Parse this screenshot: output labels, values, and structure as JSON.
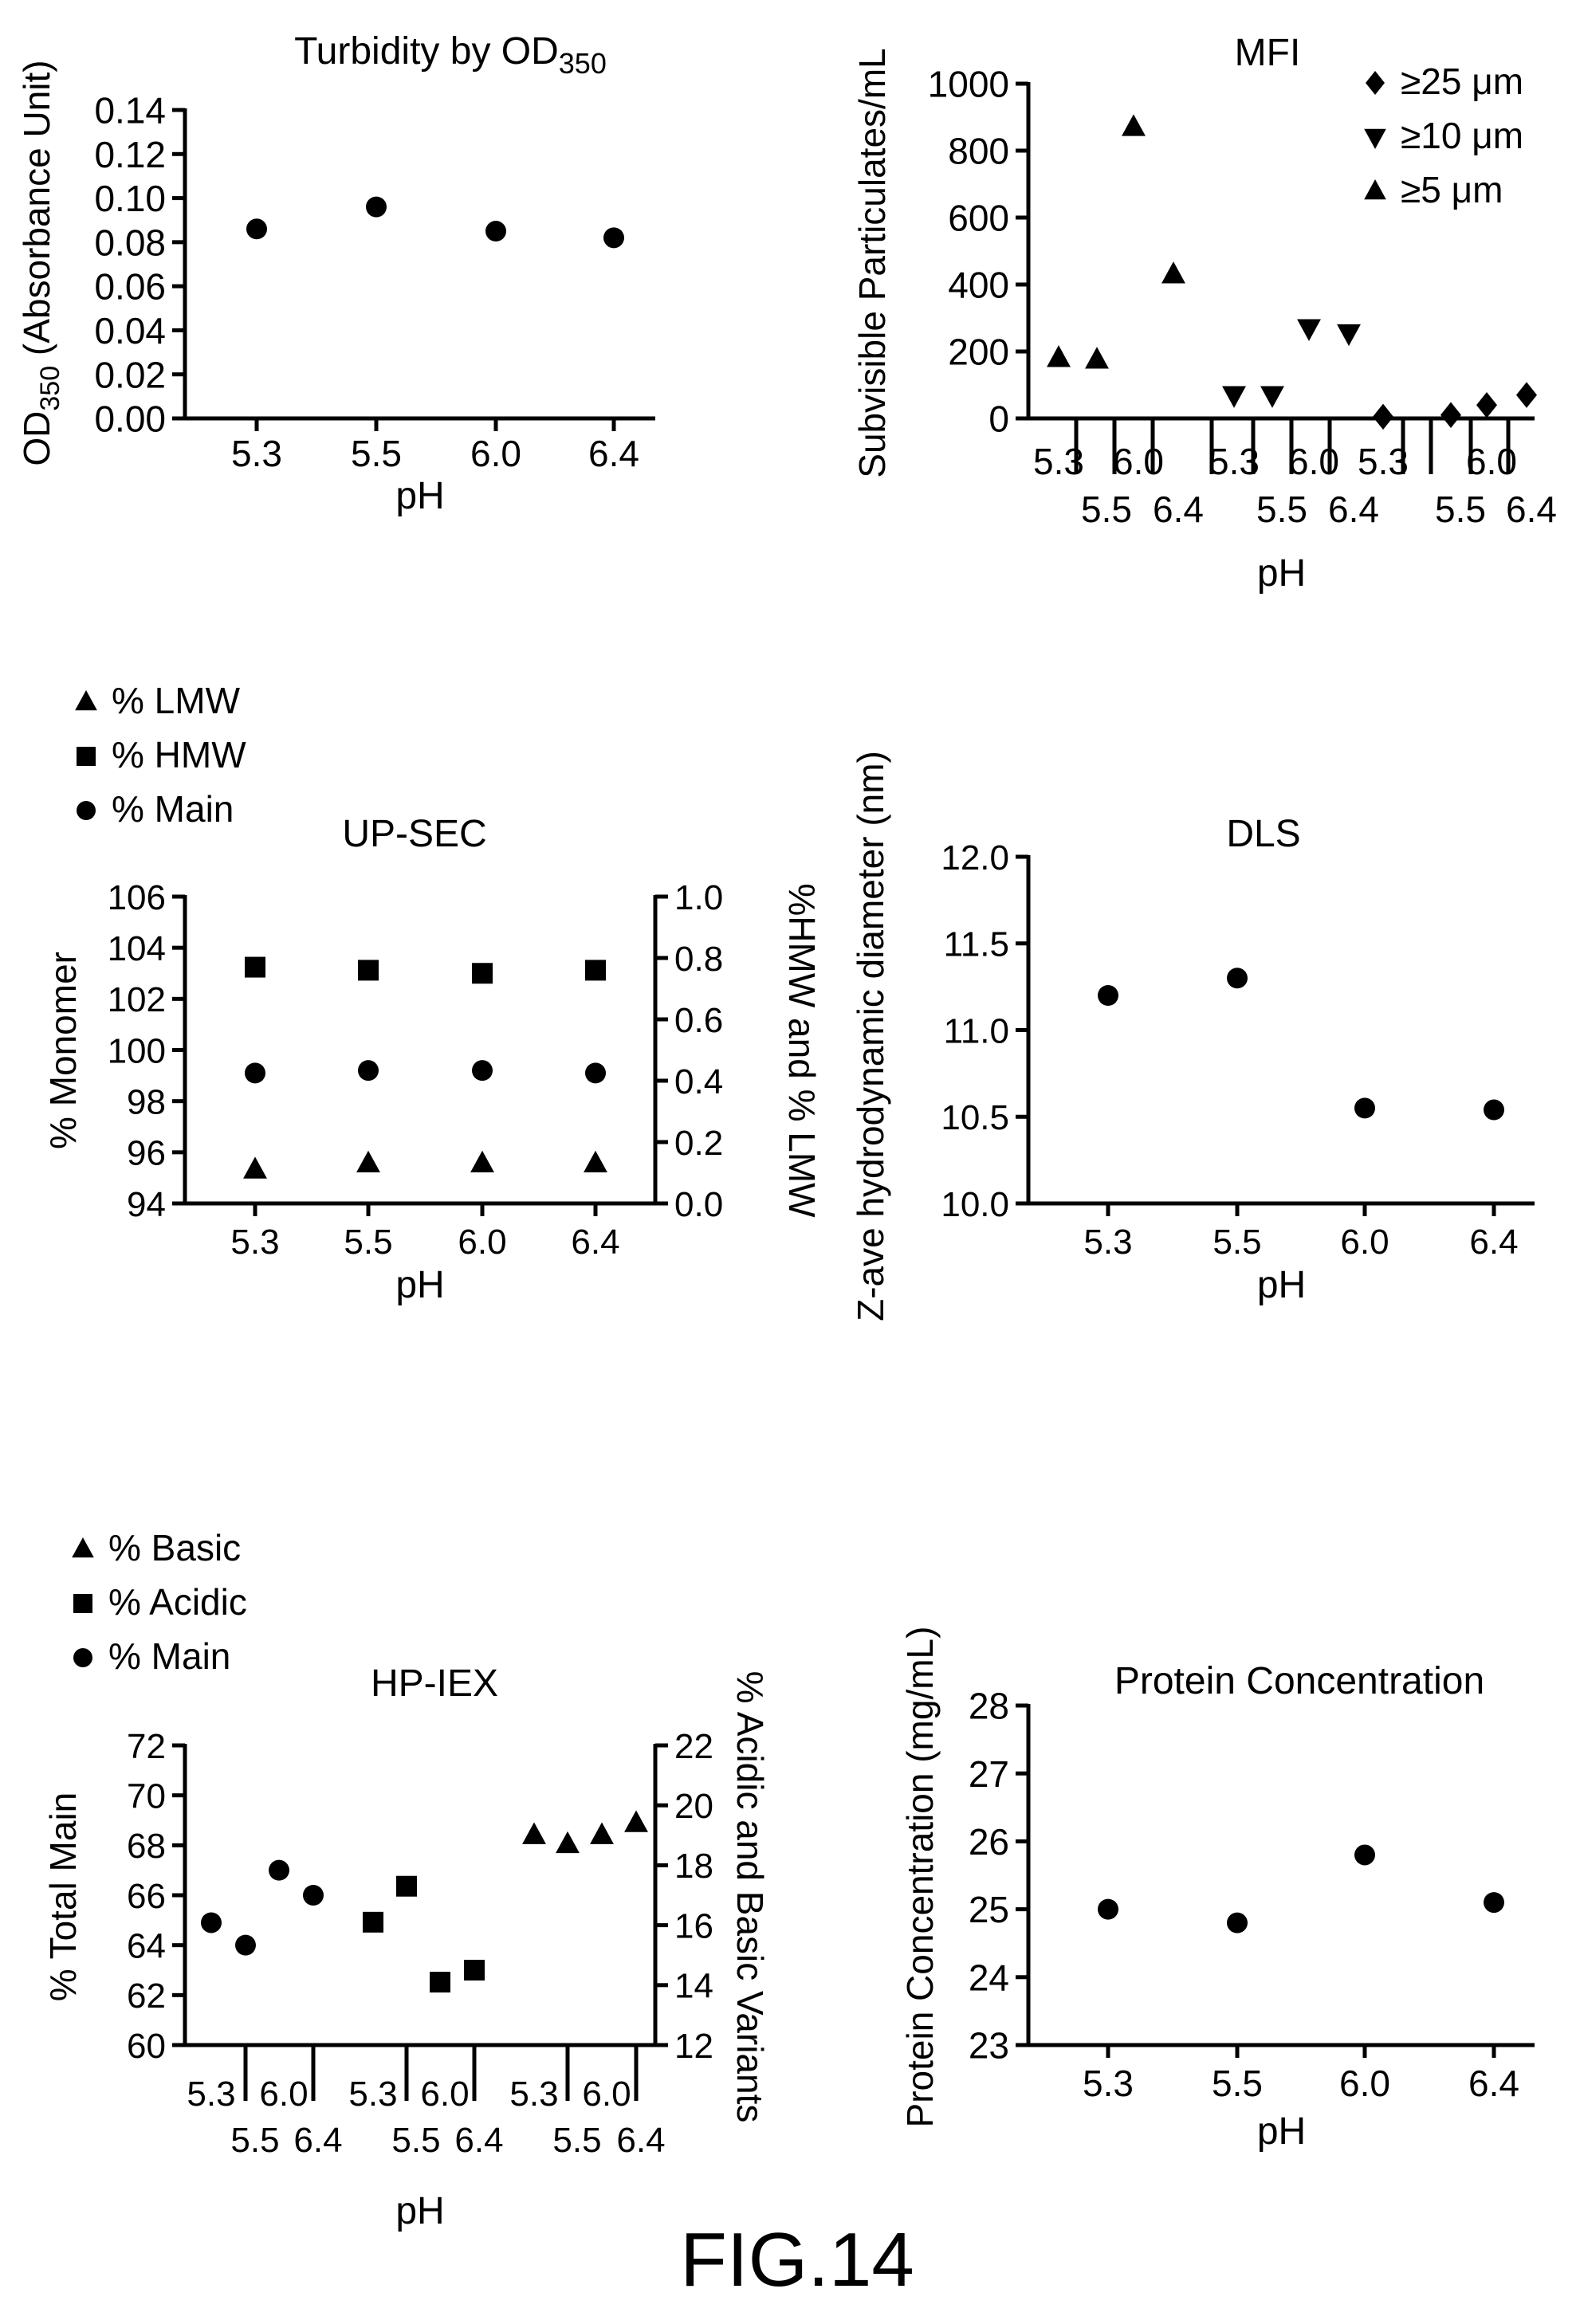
{
  "figure_label": "FIG.14",
  "chart_data": [
    {
      "id": "turbidity",
      "type": "scatter",
      "title": "Turbidity by OD",
      "title_sub": "350",
      "ylabel": "OD",
      "ylabel_sub": "350",
      "ylabel_rest": "(Absorbance Unit)",
      "xlabel": "pH",
      "ylim": [
        0,
        0.14
      ],
      "yticks": [
        "0.00",
        "0.02",
        "0.04",
        "0.06",
        "0.08",
        "0.10",
        "0.12",
        "0.14"
      ],
      "categories": [
        "5.3",
        "5.5",
        "6.0",
        "6.4"
      ],
      "series": [
        {
          "marker": "circle",
          "values": [
            0.086,
            0.096,
            0.085,
            0.082
          ]
        }
      ]
    },
    {
      "id": "mfi",
      "type": "scatter",
      "title": "MFI",
      "ylabel": "Subvisible Particulates/mL",
      "xlabel": "pH",
      "ylim": [
        0,
        1000
      ],
      "yticks": [
        "0",
        "200",
        "400",
        "600",
        "800",
        "1000"
      ],
      "categories": [
        "5.3",
        "5.5",
        "6.0",
        "6.4"
      ],
      "legend_position": "top-right",
      "series": [
        {
          "name": "≥25 μm",
          "marker": "diamond",
          "values": [
            5,
            10,
            40,
            70
          ]
        },
        {
          "name": "≥10 μm",
          "marker": "triangle-down",
          "values": [
            70,
            70,
            270,
            255
          ]
        },
        {
          "name": "≥5 μm",
          "marker": "triangle-up",
          "values": [
            180,
            175,
            870,
            430
          ]
        }
      ]
    },
    {
      "id": "upsec",
      "type": "scatter",
      "title": "UP-SEC",
      "ylabel": "% Monomer",
      "y2label": "%HMW and % LMW",
      "xlabel": "pH",
      "ylim": [
        94,
        106
      ],
      "y2lim": [
        0,
        1
      ],
      "yticks": [
        "94",
        "96",
        "98",
        "100",
        "102",
        "104",
        "106"
      ],
      "y2ticks": [
        "0.0",
        "0.2",
        "0.4",
        "0.6",
        "0.8",
        "1.0"
      ],
      "categories": [
        "5.3",
        "5.5",
        "6.0",
        "6.4"
      ],
      "legend_position": "top-left",
      "series": [
        {
          "name": "% LMW",
          "marker": "triangle-up",
          "axis": "y2",
          "values": [
            0.11,
            0.13,
            0.13,
            0.13
          ]
        },
        {
          "name": "% HMW",
          "marker": "square",
          "axis": "y2",
          "values": [
            0.77,
            0.76,
            0.75,
            0.76
          ]
        },
        {
          "name": "% Main",
          "marker": "circle",
          "axis": "y",
          "values": [
            99.1,
            99.2,
            99.2,
            99.1
          ]
        }
      ]
    },
    {
      "id": "dls",
      "type": "scatter",
      "title": "DLS",
      "ylabel": "Z-ave hydrodynamic diameter (nm)",
      "xlabel": "pH",
      "ylim": [
        10.0,
        12.0
      ],
      "yticks": [
        "10.0",
        "10.5",
        "11.0",
        "11.5",
        "12.0"
      ],
      "categories": [
        "5.3",
        "5.5",
        "6.0",
        "6.4"
      ],
      "series": [
        {
          "marker": "circle",
          "values": [
            11.2,
            11.3,
            10.55,
            10.54
          ]
        }
      ]
    },
    {
      "id": "hpiex",
      "type": "scatter",
      "title": "HP-IEX",
      "ylabel": "% Total Main",
      "y2label": "% Acidic and Basic Variants",
      "xlabel": "pH",
      "ylim": [
        60,
        72
      ],
      "y2lim": [
        12,
        22
      ],
      "yticks": [
        "60",
        "62",
        "64",
        "66",
        "68",
        "70",
        "72"
      ],
      "y2ticks": [
        "12",
        "14",
        "16",
        "18",
        "20",
        "22"
      ],
      "categories": [
        "5.3",
        "5.5",
        "6.0",
        "6.4"
      ],
      "legend_position": "top-left",
      "series": [
        {
          "name": "% Basic",
          "marker": "triangle-up",
          "axis": "y2",
          "values": [
            19.0,
            18.7,
            19.0,
            19.4
          ]
        },
        {
          "name": "% Acidic",
          "marker": "square",
          "axis": "y2",
          "values": [
            16.1,
            17.3,
            14.1,
            14.5
          ]
        },
        {
          "name": "% Main",
          "marker": "circle",
          "axis": "y",
          "values": [
            64.9,
            64.0,
            67.0,
            66.0
          ]
        }
      ]
    },
    {
      "id": "protein",
      "type": "scatter",
      "title": "Protein Concentration",
      "ylabel": "Protein Concentration (mg/mL)",
      "xlabel": "pH",
      "ylim": [
        23,
        28
      ],
      "yticks": [
        "23",
        "24",
        "25",
        "26",
        "27",
        "28"
      ],
      "categories": [
        "5.3",
        "5.5",
        "6.0",
        "6.4"
      ],
      "series": [
        {
          "marker": "circle",
          "values": [
            25.0,
            24.8,
            25.8,
            25.1
          ]
        }
      ]
    }
  ]
}
